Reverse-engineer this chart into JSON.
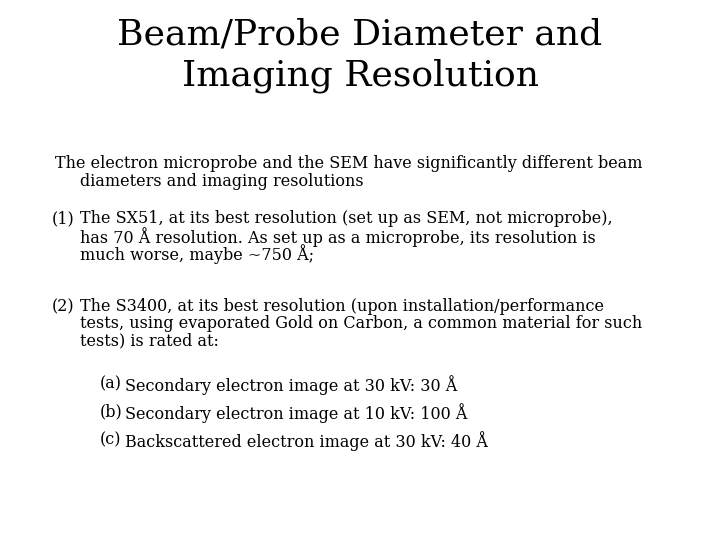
{
  "title_line1": "Beam/Probe Diameter and",
  "title_line2": "Imaging Resolution",
  "title_fontsize": 26,
  "body_fontsize": 11.5,
  "background_color": "#ffffff",
  "text_color": "#000000",
  "font_family": "serif",
  "intro_line1": "The electron microprobe and the SEM have significantly different beam",
  "intro_line2": "diameters and imaging resolutions",
  "item1_label": "(1)",
  "item1_line1": "The SX51, at its best resolution (set up as SEM, not microprobe),",
  "item1_line2": "has 70 Å resolution. As set up as a microprobe, its resolution is",
  "item1_line3": "much worse, maybe ~750 Å;",
  "item2_label": "(2)",
  "item2_line1": "The S3400, at its best resolution (upon installation/performance",
  "item2_line2": "tests, using evaporated Gold on Carbon, a common material for such",
  "item2_line3": "tests) is rated at:",
  "sub_a_label": "(a)",
  "sub_a_text": "Secondary electron image at 30 kV: 30 Å",
  "sub_b_label": "(b)",
  "sub_b_text": "Secondary electron image at 10 kV: 100 Å",
  "sub_c_label": "(c)",
  "sub_c_text": "Backscattered electron image at 30 kV: 40 Å",
  "figwidth": 7.2,
  "figheight": 5.4,
  "dpi": 100
}
